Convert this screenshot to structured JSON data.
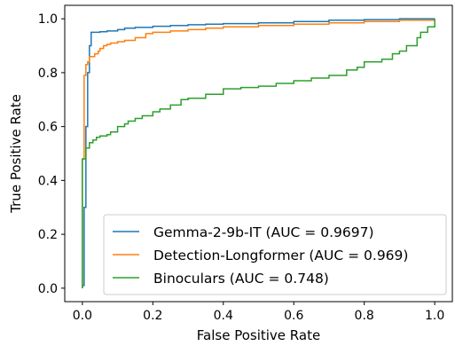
{
  "chart_data": {
    "type": "line",
    "xlabel": "False Positive Rate",
    "ylabel": "True Positive Rate",
    "xlim": [
      -0.05,
      1.05
    ],
    "ylim": [
      -0.05,
      1.05
    ],
    "xticks": [
      0.0,
      0.2,
      0.4,
      0.6,
      0.8,
      1.0
    ],
    "yticks": [
      0.0,
      0.2,
      0.4,
      0.6,
      0.8,
      1.0
    ],
    "xtick_labels": [
      "0.0",
      "0.2",
      "0.4",
      "0.6",
      "0.8",
      "1.0"
    ],
    "ytick_labels": [
      "0.0",
      "0.2",
      "0.4",
      "0.6",
      "0.8",
      "1.0"
    ],
    "grid": false,
    "legend_position": "lower-right",
    "series": [
      {
        "name": "Gemma-2-9b-IT (AUC = 0.9697)",
        "color": "#1f77b4",
        "x": [
          0.0,
          0.0,
          0.005,
          0.01,
          0.015,
          0.02,
          0.025,
          0.025,
          0.05,
          0.07,
          0.1,
          0.12,
          0.15,
          0.2,
          0.25,
          0.3,
          0.35,
          0.4,
          0.5,
          0.6,
          0.7,
          0.8,
          0.9,
          1.0
        ],
        "y": [
          0.0,
          0.01,
          0.3,
          0.6,
          0.8,
          0.9,
          0.93,
          0.95,
          0.952,
          0.955,
          0.96,
          0.965,
          0.968,
          0.972,
          0.975,
          0.978,
          0.98,
          0.982,
          0.985,
          0.99,
          0.995,
          0.997,
          1.0,
          1.0
        ]
      },
      {
        "name": "Detection-Longformer (AUC = 0.969)",
        "color": "#ff7f0e",
        "x": [
          0.0,
          0.0,
          0.005,
          0.01,
          0.01,
          0.015,
          0.02,
          0.025,
          0.03,
          0.035,
          0.04,
          0.045,
          0.05,
          0.055,
          0.06,
          0.07,
          0.08,
          0.1,
          0.12,
          0.15,
          0.18,
          0.2,
          0.25,
          0.3,
          0.35,
          0.4,
          0.5,
          0.6,
          0.7,
          0.8,
          0.9,
          1.0
        ],
        "y": [
          0.0,
          0.48,
          0.79,
          0.81,
          0.83,
          0.84,
          0.86,
          0.86,
          0.86,
          0.87,
          0.87,
          0.88,
          0.89,
          0.89,
          0.9,
          0.905,
          0.91,
          0.915,
          0.92,
          0.93,
          0.945,
          0.95,
          0.955,
          0.96,
          0.965,
          0.97,
          0.975,
          0.98,
          0.985,
          0.99,
          0.995,
          1.0
        ]
      },
      {
        "name": "Binoculars (AUC = 0.748)",
        "color": "#2ca02c",
        "x": [
          0.0,
          0.0,
          0.005,
          0.01,
          0.02,
          0.03,
          0.04,
          0.05,
          0.07,
          0.08,
          0.1,
          0.12,
          0.13,
          0.15,
          0.17,
          0.2,
          0.22,
          0.25,
          0.28,
          0.3,
          0.35,
          0.4,
          0.45,
          0.5,
          0.55,
          0.6,
          0.65,
          0.7,
          0.75,
          0.78,
          0.8,
          0.85,
          0.88,
          0.9,
          0.92,
          0.95,
          0.96,
          0.98,
          1.0
        ],
        "y": [
          0.0,
          0.48,
          0.48,
          0.52,
          0.54,
          0.55,
          0.56,
          0.565,
          0.57,
          0.58,
          0.6,
          0.61,
          0.62,
          0.63,
          0.64,
          0.655,
          0.665,
          0.68,
          0.7,
          0.705,
          0.72,
          0.74,
          0.745,
          0.75,
          0.76,
          0.77,
          0.78,
          0.79,
          0.81,
          0.82,
          0.84,
          0.85,
          0.87,
          0.88,
          0.9,
          0.93,
          0.95,
          0.97,
          1.0
        ]
      }
    ]
  }
}
